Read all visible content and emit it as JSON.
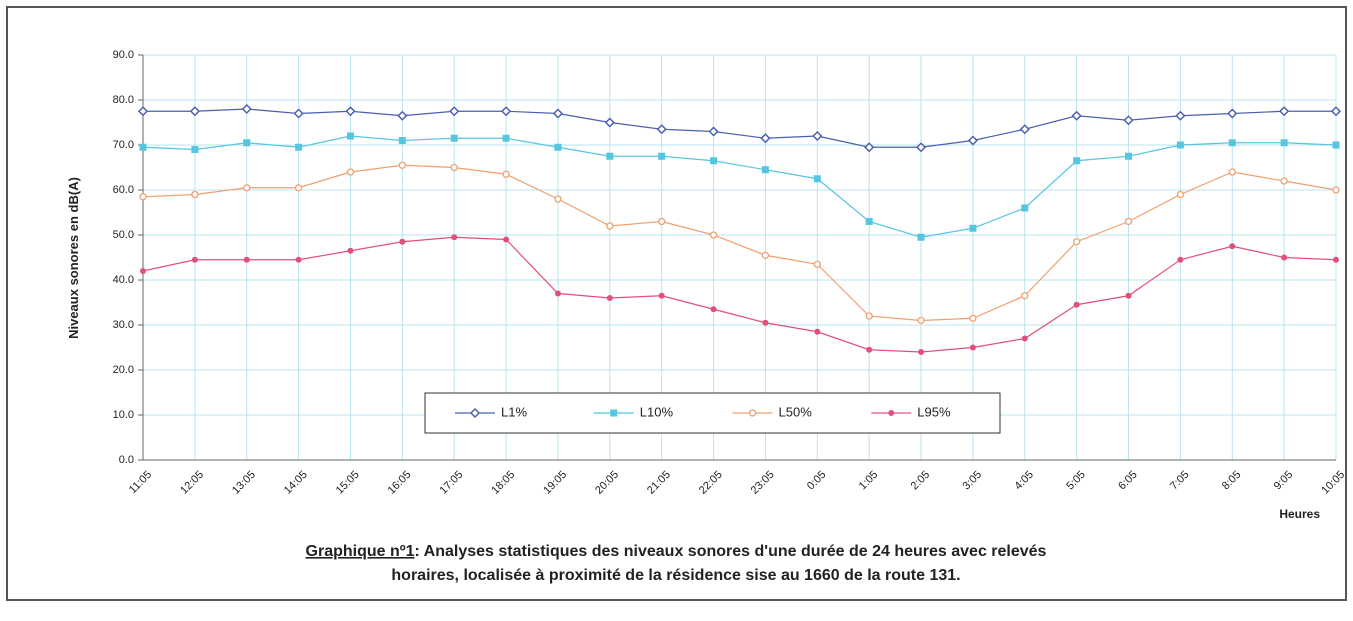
{
  "chart_data": {
    "type": "line",
    "y_label": "Niveaux sonores en dB(A)",
    "x_label": "Heures",
    "caption_label": "Graphique nº1",
    "caption_lines": [
      ": Analyses statistiques des niveaux sonores d'une durée de 24 heures avec relevés",
      "horaires, localisée à proximité de la résidence sise au 1660 de la route 131."
    ],
    "categories": [
      "11:05",
      "12:05",
      "13:05",
      "14:05",
      "15:05",
      "16:05",
      "17:05",
      "18:05",
      "19:05",
      "20:05",
      "21:05",
      "22:05",
      "23:05",
      "0:05",
      "1:05",
      "2:05",
      "3:05",
      "4:05",
      "5:05",
      "6:05",
      "7:05",
      "8:05",
      "9:05",
      "10:05"
    ],
    "ylim": [
      0,
      90
    ],
    "yticks": [
      {
        "value": 0,
        "label": "0.0"
      },
      {
        "value": 10,
        "label": "10.0"
      },
      {
        "value": 20,
        "label": "20.0"
      },
      {
        "value": 30,
        "label": "30.0"
      },
      {
        "value": 40,
        "label": "40.0"
      },
      {
        "value": 50,
        "label": "50.0"
      },
      {
        "value": 60,
        "label": "60.0"
      },
      {
        "value": 70,
        "label": "70.0"
      },
      {
        "value": 80,
        "label": "80.0"
      },
      {
        "value": 90,
        "label": "90.0"
      }
    ],
    "grid": true,
    "legend": "bottom",
    "series": [
      {
        "name": "L1%",
        "color": "#4a5fb0",
        "marker": "diamond",
        "values": [
          77.5,
          77.5,
          78,
          77,
          77.5,
          76.5,
          77.5,
          77.5,
          77,
          75,
          73.5,
          73,
          71.5,
          72,
          69.5,
          69.5,
          71,
          73.5,
          76.5,
          75.5,
          76.5,
          77,
          77.5,
          77.5
        ]
      },
      {
        "name": "L10%",
        "color": "#55c6e0",
        "marker": "square",
        "values": [
          69.5,
          69,
          70.5,
          69.5,
          72,
          71,
          71.5,
          71.5,
          69.5,
          67.5,
          67.5,
          66.5,
          64.5,
          62.5,
          53,
          49.5,
          51.5,
          56,
          66.5,
          67.5,
          70,
          70.5,
          70.5,
          70
        ]
      },
      {
        "name": "L50%",
        "color": "#f0a070",
        "marker": "circle-open",
        "values": [
          58.5,
          59,
          60.5,
          60.5,
          64,
          65.5,
          65,
          63.5,
          58,
          52,
          53,
          50,
          45.5,
          43.5,
          32,
          31,
          31.5,
          36.5,
          48.5,
          53,
          59,
          64,
          62,
          60
        ]
      },
      {
        "name": "L95%",
        "color": "#e0507a",
        "marker": "circle",
        "values": [
          42,
          44.5,
          44.5,
          44.5,
          46.5,
          48.5,
          49.5,
          49,
          37,
          36,
          36.5,
          33.5,
          30.5,
          28.5,
          24.5,
          24,
          25,
          27,
          34.5,
          36.5,
          44.5,
          47.5,
          45,
          44.5
        ]
      }
    ]
  }
}
